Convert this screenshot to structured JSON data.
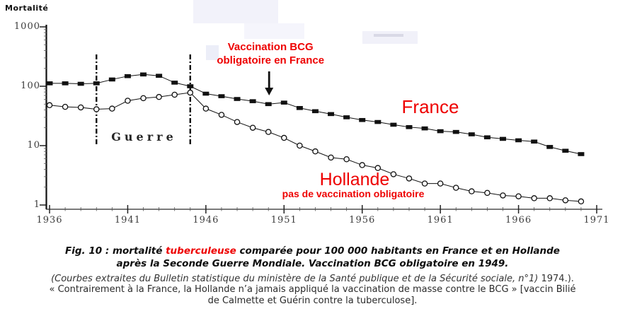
{
  "chart_data": {
    "type": "line",
    "ylabel": "Mortalité",
    "y_scale": "log",
    "ylim": [
      1,
      1000
    ],
    "y_ticks": [
      "1000",
      "100",
      "10",
      "1"
    ],
    "y_tick_values": [
      1000,
      100,
      10,
      1
    ],
    "x_ticks": [
      1936,
      1941,
      1946,
      1951,
      1956,
      1961,
      1966,
      1971
    ],
    "x_range": [
      1936,
      1971
    ],
    "grid": false,
    "legend_position": "inline-labels",
    "years": [
      1936,
      1937,
      1938,
      1939,
      1940,
      1941,
      1942,
      1943,
      1944,
      1945,
      1946,
      1947,
      1948,
      1949,
      1950,
      1951,
      1952,
      1953,
      1954,
      1955,
      1956,
      1957,
      1958,
      1959,
      1960,
      1961,
      1962,
      1963,
      1964,
      1965,
      1966,
      1967,
      1968,
      1969,
      1970
    ],
    "series": [
      {
        "name": "France",
        "marker": "filled-square",
        "values": [
          112,
          112,
          110,
          112,
          130,
          148,
          158,
          150,
          115,
          100,
          75,
          68,
          61,
          56,
          50,
          53,
          43,
          38,
          34,
          30,
          27,
          25,
          22.5,
          20.5,
          19.5,
          17.5,
          17,
          15.5,
          13.8,
          13,
          12.3,
          11.7,
          9.5,
          8.2,
          7.2
        ]
      },
      {
        "name": "Hollande",
        "marker": "open-circle",
        "values": [
          48,
          45,
          44,
          41,
          42,
          57,
          63,
          66,
          72,
          78,
          42,
          33,
          25,
          20,
          17,
          13.5,
          10,
          8,
          6.3,
          5.9,
          4.7,
          4.2,
          3.3,
          2.8,
          2.3,
          2.3,
          1.95,
          1.7,
          1.6,
          1.45,
          1.4,
          1.3,
          1.3,
          1.2,
          1.15
        ]
      }
    ]
  },
  "annotations": {
    "war": {
      "label": "Guerre",
      "start_year": 1939,
      "end_year": 1945
    },
    "vaccination": {
      "line1": "Vaccination BCG",
      "line2": "obligatoire en France",
      "arrow_year": 1950
    },
    "series_labels": {
      "france": "France",
      "hollande": "Hollande",
      "hollande_sub": "pas de vaccination obligatoire"
    }
  },
  "caption": {
    "line1_prefix": "Fig. 10 : mortalité ",
    "line1_highlight": "tuberculeuse",
    "line1_suffix": " comparée pour 100 000 habitants en France et en Hollande",
    "line2": "après la Seconde Guerre Mondiale. Vaccination BCG obligatoire en 1949.",
    "source_italic": "(Courbes extraites du Bulletin statistique du ministère de la Santé publique et de la Sécurité sociale, n°1)",
    "source_suffix": " 1974.).",
    "quote_line1": "« Contrairement à la France, la Hollande n’a jamais appliqué la vaccination de masse contre le BCG » [vaccin Bilié",
    "quote_line2": "de Calmette et Guérin contre la tuberculose]."
  },
  "colors": {
    "accent_red": "#ee0000",
    "ink": "#111111",
    "axis_gray": "#3d3d3d"
  }
}
